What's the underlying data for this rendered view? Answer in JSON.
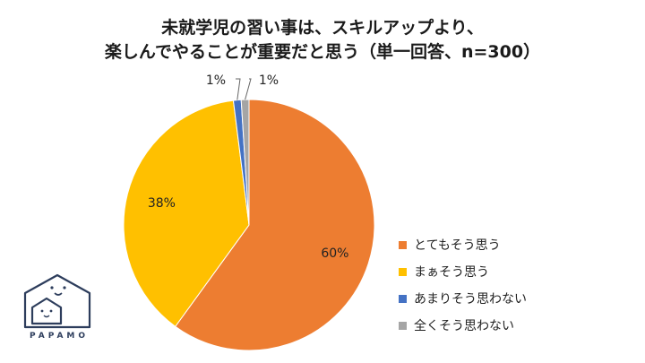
{
  "chart_data": {
    "type": "pie",
    "title_lines": [
      "未就学児の習い事は、スキルアップより、",
      "楽しんでやることが重要だと思う（単一回答、n=300）"
    ],
    "categories": [
      "とてもそう思う",
      "まぁそう思う",
      "あまりそう思わない",
      "全くそう思わない"
    ],
    "values": [
      60,
      38,
      1,
      1
    ],
    "data_labels": [
      "60%",
      "38%",
      "1%",
      "1%"
    ],
    "colors": [
      "#ED7D31",
      "#FFC000",
      "#4472C4",
      "#A5A5A5"
    ],
    "legend_position": "right"
  },
  "logo": {
    "text": "PAPAMO"
  }
}
